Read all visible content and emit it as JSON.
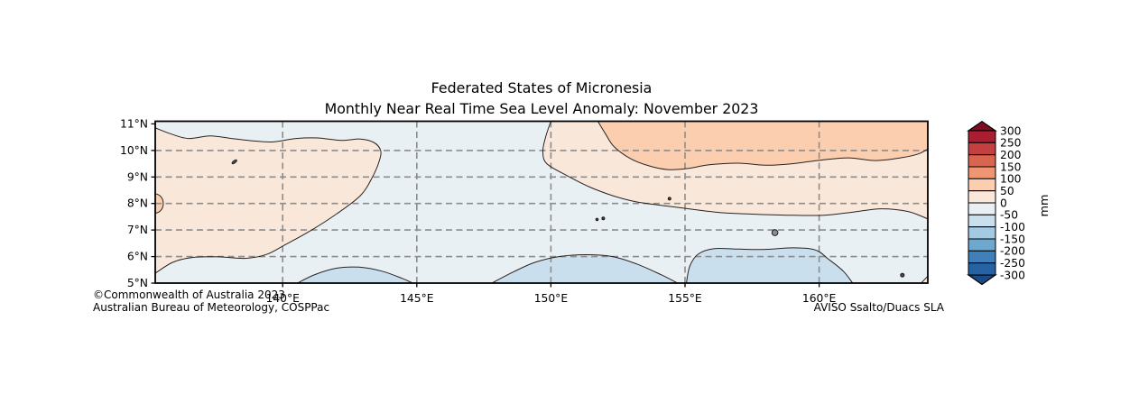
{
  "title": {
    "line1": "Federated States of Micronesia",
    "line2": "Monthly Near Real Time Sea Level Anomaly: November 2023"
  },
  "footer": {
    "copyright": "©Commonwealth of Australia 2023",
    "agency": "Australian Bureau of Meteorology, COSPPac",
    "credit": "AVISO Ssalto/Duacs SLA"
  },
  "chart_data": {
    "type": "filled_contour_map",
    "region_name": "Federated States of Micronesia",
    "variable": "Monthly Near Real Time Sea Level Anomaly",
    "period": "November 2023",
    "units": "mm",
    "lon_range": [
      135.25,
      164.05
    ],
    "lat_range": [
      5.0,
      11.1
    ],
    "x_ticks": [
      {
        "lon": 140,
        "label": "140°E"
      },
      {
        "lon": 145,
        "label": "145°E"
      },
      {
        "lon": 150,
        "label": "150°E"
      },
      {
        "lon": 155,
        "label": "155°E"
      },
      {
        "lon": 160,
        "label": "160°E"
      }
    ],
    "y_ticks": [
      {
        "lat": 11,
        "label": "11°N"
      },
      {
        "lat": 10,
        "label": "10°N"
      },
      {
        "lat": 9,
        "label": "9°N"
      },
      {
        "lat": 8,
        "label": "8°N"
      },
      {
        "lat": 7,
        "label": "7°N"
      },
      {
        "lat": 6,
        "label": "6°N"
      },
      {
        "lat": 5,
        "label": "5°N"
      }
    ],
    "grid": {
      "lat_lines": [
        6,
        7,
        8,
        9,
        10
      ],
      "lon_lines": [
        140,
        145,
        150,
        155,
        160
      ],
      "color": "#8c8c8c",
      "dash": "7 4.5"
    },
    "background_band": {
      "value_range": "-50..0 mm",
      "color": "#e9f0f3"
    },
    "contour_color": "#2b2220",
    "frame_color": "#000000",
    "regions": [
      {
        "name": "west-positive-anomaly",
        "value_range": "0..50 mm",
        "color": "#f9e7da",
        "outline": [
          [
            135.25,
            5.37
          ],
          [
            135.9,
            5.78
          ],
          [
            136.6,
            5.96
          ],
          [
            137.6,
            5.99
          ],
          [
            138.6,
            5.93
          ],
          [
            139.4,
            6.08
          ],
          [
            140.1,
            6.45
          ],
          [
            141.0,
            6.95
          ],
          [
            142.0,
            7.6
          ],
          [
            142.9,
            8.3
          ],
          [
            143.35,
            9.0
          ],
          [
            143.6,
            9.6
          ],
          [
            143.65,
            10.0
          ],
          [
            143.4,
            10.3
          ],
          [
            142.9,
            10.43
          ],
          [
            142.2,
            10.38
          ],
          [
            141.3,
            10.47
          ],
          [
            140.5,
            10.45
          ],
          [
            139.6,
            10.32
          ],
          [
            138.8,
            10.37
          ],
          [
            138.1,
            10.45
          ],
          [
            137.3,
            10.55
          ],
          [
            136.5,
            10.45
          ],
          [
            135.9,
            10.6
          ],
          [
            135.25,
            10.85
          ]
        ],
        "closure": []
      },
      {
        "name": "east-positive-anomaly",
        "value_range": "0..50 mm",
        "color": "#f9e7da",
        "outline": [
          [
            150.0,
            11.1
          ],
          [
            149.8,
            10.5
          ],
          [
            149.7,
            9.95
          ],
          [
            149.85,
            9.5
          ],
          [
            150.6,
            9.05
          ],
          [
            151.45,
            8.62
          ],
          [
            152.35,
            8.28
          ],
          [
            153.2,
            8.06
          ],
          [
            154.2,
            7.92
          ],
          [
            155.3,
            7.78
          ],
          [
            156.3,
            7.66
          ],
          [
            157.5,
            7.6
          ],
          [
            158.8,
            7.56
          ],
          [
            160.2,
            7.56
          ],
          [
            161.3,
            7.68
          ],
          [
            162.3,
            7.8
          ],
          [
            163.3,
            7.7
          ],
          [
            164.05,
            7.42
          ]
        ],
        "closure": [
          [
            164.05,
            11.1
          ]
        ]
      },
      {
        "name": "north-east-salmon-anomaly",
        "value_range": "50..100 mm",
        "color": "#fbceb0",
        "outline": [
          [
            151.75,
            11.1
          ],
          [
            152.05,
            10.6
          ],
          [
            152.35,
            10.15
          ],
          [
            152.95,
            9.7
          ],
          [
            153.65,
            9.42
          ],
          [
            154.35,
            9.28
          ],
          [
            155.1,
            9.32
          ],
          [
            155.9,
            9.46
          ],
          [
            157.0,
            9.52
          ],
          [
            158.0,
            9.44
          ],
          [
            159.0,
            9.5
          ],
          [
            160.1,
            9.64
          ],
          [
            161.1,
            9.72
          ],
          [
            162.1,
            9.62
          ],
          [
            163.1,
            9.73
          ],
          [
            163.7,
            9.87
          ],
          [
            164.05,
            10.05
          ]
        ],
        "closure": [
          [
            164.05,
            11.1
          ]
        ]
      },
      {
        "name": "south-negative-patch-1",
        "value_range": "-100..-50 mm",
        "color": "#c9dfee",
        "outline": [
          [
            140.55,
            5.0
          ],
          [
            141.2,
            5.32
          ],
          [
            142.0,
            5.56
          ],
          [
            142.85,
            5.6
          ],
          [
            143.7,
            5.45
          ],
          [
            144.45,
            5.18
          ],
          [
            144.85,
            5.0
          ]
        ],
        "closure": []
      },
      {
        "name": "south-negative-patch-2",
        "value_range": "-100..-50 mm",
        "color": "#c9dfee",
        "outline": [
          [
            147.8,
            5.0
          ],
          [
            148.6,
            5.42
          ],
          [
            149.4,
            5.78
          ],
          [
            150.3,
            6.0
          ],
          [
            151.3,
            6.07
          ],
          [
            152.3,
            6.0
          ],
          [
            153.2,
            5.72
          ],
          [
            154.1,
            5.32
          ],
          [
            154.72,
            5.0
          ]
        ],
        "closure": []
      },
      {
        "name": "south-negative-patch-3",
        "value_range": "-100..-50 mm",
        "color": "#c9dfee",
        "outline": [
          [
            155.05,
            5.0
          ],
          [
            155.18,
            5.65
          ],
          [
            155.5,
            6.1
          ],
          [
            156.1,
            6.3
          ],
          [
            157.0,
            6.28
          ],
          [
            158.0,
            6.27
          ],
          [
            159.0,
            6.33
          ],
          [
            159.85,
            6.25
          ],
          [
            160.35,
            5.9
          ],
          [
            160.9,
            5.45
          ],
          [
            161.25,
            5.0
          ]
        ],
        "closure": []
      },
      {
        "name": "corner-positive-sliver",
        "value_range": "0..50 mm",
        "color": "#f9e7da",
        "outline": [
          [
            163.8,
            5.0
          ],
          [
            164.05,
            5.26
          ]
        ],
        "closure": [
          [
            164.05,
            5.0
          ]
        ]
      }
    ],
    "spot_features": [
      {
        "name": "west-edge-salmon-blob",
        "value_range": "50..100 mm",
        "color": "#fbceb0",
        "type": "ellipse",
        "lon": 135.25,
        "lat": 8.0,
        "rx_deg": 0.3,
        "ry_deg": 0.36
      }
    ],
    "islands": [
      {
        "name": "yap",
        "lon": 138.2,
        "lat": 9.57,
        "shape": "ellipse",
        "rx": 3.2,
        "ry": 1.4,
        "rot": -38
      },
      {
        "name": "chuuk-1",
        "lon": 151.72,
        "lat": 7.4,
        "shape": "circle",
        "r": 1.3
      },
      {
        "name": "chuuk-2",
        "lon": 151.95,
        "lat": 7.44,
        "shape": "circle",
        "r": 1.5
      },
      {
        "name": "oroluk",
        "lon": 154.42,
        "lat": 8.18,
        "shape": "circle",
        "r": 1.5
      },
      {
        "name": "pohnpei",
        "lon": 158.35,
        "lat": 6.9,
        "shape": "circle",
        "r": 3.3
      },
      {
        "name": "kosrae",
        "lon": 163.1,
        "lat": 5.3,
        "shape": "circle",
        "r": 2.0
      }
    ],
    "colorbar": {
      "title": "mm",
      "levels": [
        300,
        250,
        200,
        150,
        100,
        50,
        0,
        -50,
        -100,
        -150,
        -200,
        -250,
        -300
      ],
      "colors": [
        "#a91e30",
        "#c43f3f",
        "#d9654f",
        "#ef9572",
        "#fbceb0",
        "#f9e7da",
        "#e9f0f3",
        "#c9dfee",
        "#a2cbe3",
        "#6fa8cf",
        "#3f80ba",
        "#2563a4"
      ],
      "over_color": "#7d0c23",
      "under_color": "#1b4a87"
    }
  }
}
